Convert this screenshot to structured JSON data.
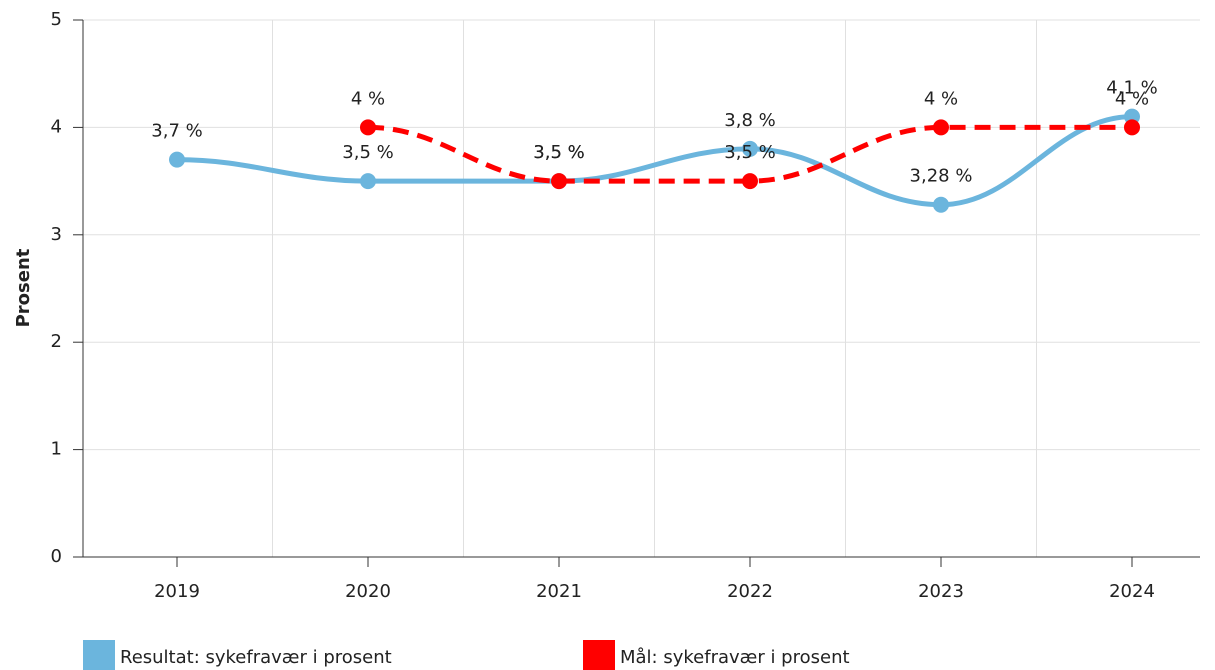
{
  "chart_data": {
    "type": "line",
    "y_label": "Prosent",
    "categories": [
      "2019",
      "2020",
      "2021",
      "2022",
      "2023",
      "2024"
    ],
    "series": [
      {
        "name": "Resultat: sykefravær i prosent",
        "color": "#6bb5dd",
        "dashed": false,
        "values": [
          3.7,
          3.5,
          3.5,
          3.8,
          3.28,
          4.1
        ],
        "value_labels": [
          "3,7 %",
          "3,5 %",
          "3,5 %",
          "3,8 %",
          "3,28 %",
          "4,1 %"
        ]
      },
      {
        "name": "Mål: sykefravær i prosent",
        "color": "#ff0000",
        "dashed": true,
        "values": [
          null,
          4,
          3.5,
          3.5,
          4,
          4
        ],
        "value_labels": [
          null,
          "4 %",
          "3,5 %",
          "3,5 %",
          "4 %",
          "4 %"
        ]
      }
    ],
    "ylim": [
      0,
      5
    ],
    "yticks": [
      0,
      1,
      2,
      3,
      4,
      5
    ],
    "grid": true
  }
}
